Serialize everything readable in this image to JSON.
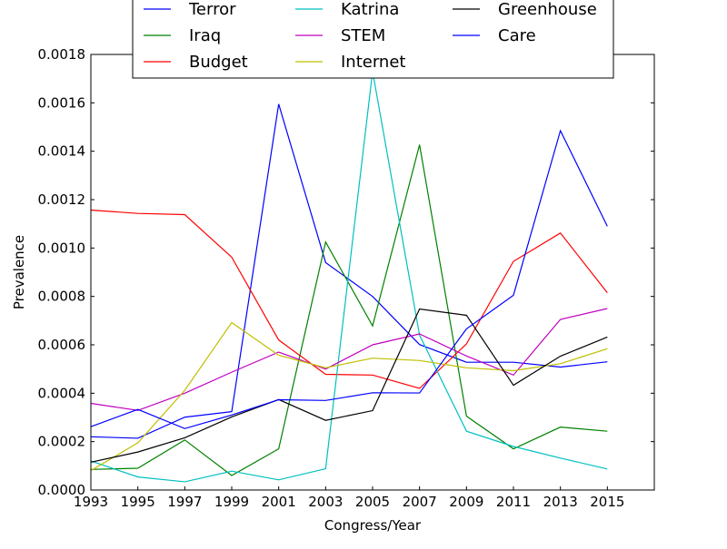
{
  "chart_data": {
    "type": "line",
    "title": "",
    "xlabel": "Congress/Year",
    "ylabel": "Prevalence",
    "xlim": [
      1993,
      2017
    ],
    "ylim": [
      0.0,
      0.0018
    ],
    "x_ticks": [
      1993,
      1995,
      1997,
      1999,
      2001,
      2003,
      2005,
      2007,
      2009,
      2011,
      2013,
      2015
    ],
    "x_tick_labels": [
      "1993",
      "1995",
      "1997",
      "1999",
      "2001",
      "2003",
      "2005",
      "2007",
      "2009",
      "2011",
      "2013",
      "2015"
    ],
    "y_ticks": [
      0.0,
      0.0002,
      0.0004,
      0.0006,
      0.0008,
      0.001,
      0.0012,
      0.0014,
      0.0016,
      0.0018
    ],
    "y_tick_labels": [
      "0.0000",
      "0.0002",
      "0.0004",
      "0.0006",
      "0.0008",
      "0.0010",
      "0.0012",
      "0.0014",
      "0.0016",
      "0.0018"
    ],
    "grid": false,
    "legend_position": "top-center",
    "legend_columns": 3,
    "x": [
      1993,
      1995,
      1997,
      1999,
      2001,
      2003,
      2005,
      2007,
      2009,
      2011,
      2013,
      2015
    ],
    "series": [
      {
        "name": "Terror",
        "color": "#0000ff",
        "values": [
          0.00022,
          0.000214,
          0.000301,
          0.000324,
          0.001595,
          0.00094,
          0.0008,
          0.000601,
          0.000528,
          0.000528,
          0.000508,
          0.00053
        ]
      },
      {
        "name": "Iraq",
        "color": "#008000",
        "values": [
          8.5e-05,
          9e-05,
          0.000207,
          6e-05,
          0.00017,
          0.001025,
          0.000678,
          0.001427,
          0.000305,
          0.00017,
          0.00026,
          0.000243
        ]
      },
      {
        "name": "Budget",
        "color": "#ff0000",
        "values": [
          0.001157,
          0.001143,
          0.001138,
          0.000962,
          0.00062,
          0.000478,
          0.000475,
          0.00042,
          0.000604,
          0.000945,
          0.001062,
          0.000815
        ]
      },
      {
        "name": "Katrina",
        "color": "#00bfbf",
        "values": [
          0.00012,
          5.4e-05,
          3.4e-05,
          7.8e-05,
          4.2e-05,
          8.8e-05,
          0.00173,
          0.00064,
          0.000243,
          0.00018,
          0.000132,
          8.7e-05
        ]
      },
      {
        "name": "STEM",
        "color": "#bf00bf",
        "values": [
          0.000358,
          0.000329,
          0.0004,
          0.000487,
          0.00057,
          0.0005,
          0.0006,
          0.000645,
          0.000554,
          0.000475,
          0.000705,
          0.00075
        ]
      },
      {
        "name": "Internet",
        "color": "#bfbf00",
        "values": [
          8e-05,
          0.000195,
          0.000412,
          0.000692,
          0.000557,
          0.000505,
          0.000545,
          0.000535,
          0.000505,
          0.000493,
          0.000522,
          0.000584
        ]
      },
      {
        "name": "Greenhouse",
        "color": "#000000",
        "values": [
          0.000115,
          0.000157,
          0.000216,
          0.000302,
          0.000374,
          0.000288,
          0.000328,
          0.000748,
          0.000722,
          0.000433,
          0.000553,
          0.000632
        ]
      },
      {
        "name": "Care",
        "color": "#0000ff",
        "values": [
          0.000262,
          0.000333,
          0.000254,
          0.00031,
          0.000373,
          0.00037,
          0.000402,
          0.000401,
          0.000666,
          0.000805,
          0.001485,
          0.00109
        ]
      }
    ]
  }
}
